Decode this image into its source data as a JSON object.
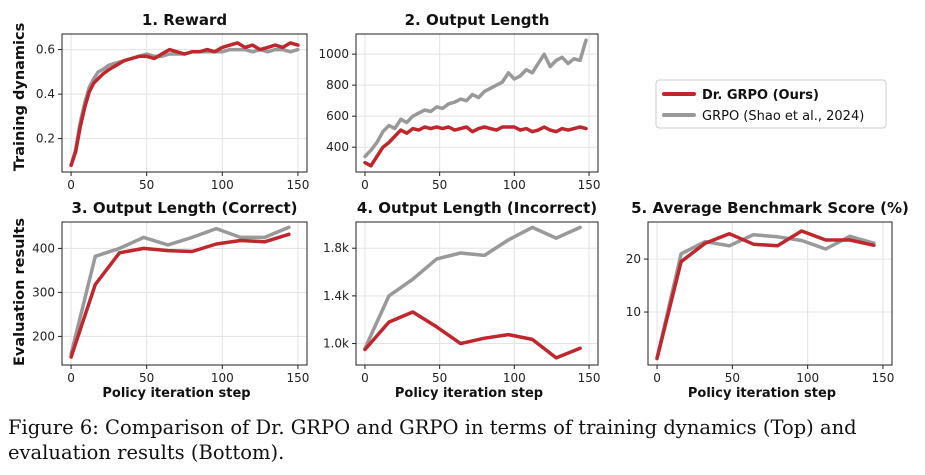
{
  "caption": "Figure 6: Comparison of Dr. GRPO and GRPO in terms of training dynamics (Top) and evaluation results (Bottom).",
  "row_labels": [
    "Training dynamics",
    "Evaluation results"
  ],
  "legend": {
    "placement": "right of top row",
    "entries": [
      {
        "label": "Dr. GRPO (Ours)",
        "color": "#c0272d",
        "bold": true
      },
      {
        "label": "GRPO (Shao et al., 2024)",
        "color": "#999999",
        "bold": false
      }
    ]
  },
  "chart_data": [
    {
      "id": "p1",
      "type": "line",
      "title": "1. Reward",
      "xlabel": "",
      "ylabel": "",
      "xlim": [
        -6,
        156
      ],
      "ylim": [
        0.05,
        0.67
      ],
      "xticks": [
        0,
        50,
        100,
        150
      ],
      "yticks": [
        0.2,
        0.4,
        0.6
      ],
      "ytick_labels": [
        "0.2",
        "0.4",
        "0.6"
      ],
      "grid": true,
      "series": [
        {
          "name": "Dr. GRPO (Ours)",
          "color": "#c0272d",
          "x": [
            0,
            3,
            6,
            9,
            12,
            15,
            18,
            21,
            25,
            30,
            35,
            40,
            45,
            50,
            55,
            60,
            65,
            70,
            75,
            80,
            85,
            90,
            95,
            100,
            105,
            110,
            115,
            120,
            125,
            130,
            135,
            140,
            145,
            150
          ],
          "y": [
            0.08,
            0.14,
            0.25,
            0.34,
            0.41,
            0.45,
            0.47,
            0.49,
            0.51,
            0.53,
            0.55,
            0.56,
            0.57,
            0.57,
            0.56,
            0.58,
            0.6,
            0.59,
            0.58,
            0.59,
            0.59,
            0.6,
            0.59,
            0.61,
            0.62,
            0.63,
            0.61,
            0.62,
            0.6,
            0.61,
            0.62,
            0.61,
            0.63,
            0.62
          ]
        },
        {
          "name": "GRPO (Shao et al., 2024)",
          "color": "#999999",
          "x": [
            0,
            3,
            6,
            9,
            12,
            15,
            18,
            21,
            25,
            30,
            35,
            40,
            45,
            50,
            55,
            60,
            65,
            70,
            75,
            80,
            85,
            90,
            95,
            100,
            105,
            110,
            115,
            120,
            125,
            130,
            135,
            140,
            145,
            150
          ],
          "y": [
            0.08,
            0.15,
            0.27,
            0.36,
            0.43,
            0.47,
            0.5,
            0.51,
            0.53,
            0.54,
            0.55,
            0.56,
            0.57,
            0.58,
            0.57,
            0.57,
            0.58,
            0.58,
            0.58,
            0.59,
            0.59,
            0.59,
            0.59,
            0.59,
            0.6,
            0.6,
            0.6,
            0.59,
            0.6,
            0.59,
            0.6,
            0.6,
            0.59,
            0.6
          ]
        }
      ]
    },
    {
      "id": "p2",
      "type": "line",
      "title": "2. Output Length",
      "xlabel": "",
      "ylabel": "",
      "xlim": [
        -6,
        156
      ],
      "ylim": [
        240,
        1130
      ],
      "xticks": [
        0,
        50,
        100,
        150
      ],
      "yticks": [
        400,
        600,
        800,
        1000
      ],
      "ytick_labels": [
        "400",
        "600",
        "800",
        "1000"
      ],
      "grid": true,
      "series": [
        {
          "name": "Dr. GRPO (Ours)",
          "color": "#c0272d",
          "x": [
            0,
            4,
            8,
            12,
            16,
            20,
            24,
            28,
            32,
            36,
            40,
            44,
            48,
            52,
            56,
            60,
            64,
            68,
            72,
            76,
            80,
            84,
            88,
            92,
            96,
            100,
            104,
            108,
            112,
            116,
            120,
            124,
            128,
            132,
            136,
            140,
            144,
            148
          ],
          "y": [
            300,
            280,
            340,
            400,
            430,
            470,
            510,
            490,
            520,
            510,
            530,
            520,
            530,
            520,
            530,
            510,
            520,
            530,
            500,
            520,
            530,
            520,
            510,
            530,
            530,
            530,
            510,
            520,
            500,
            510,
            530,
            510,
            500,
            520,
            510,
            520,
            530,
            520
          ]
        },
        {
          "name": "GRPO (Shao et al., 2024)",
          "color": "#999999",
          "x": [
            0,
            4,
            8,
            12,
            16,
            20,
            24,
            28,
            32,
            36,
            40,
            44,
            48,
            52,
            56,
            60,
            64,
            68,
            72,
            76,
            80,
            84,
            88,
            92,
            96,
            100,
            104,
            108,
            112,
            116,
            120,
            124,
            128,
            132,
            136,
            140,
            144,
            148
          ],
          "y": [
            340,
            380,
            430,
            500,
            540,
            520,
            580,
            560,
            600,
            620,
            640,
            630,
            660,
            650,
            680,
            690,
            710,
            700,
            740,
            720,
            760,
            780,
            800,
            820,
            880,
            840,
            860,
            900,
            880,
            940,
            1000,
            920,
            960,
            980,
            940,
            970,
            960,
            1090
          ]
        }
      ]
    },
    {
      "id": "p3",
      "type": "line",
      "title": "3. Output Length (Correct)",
      "xlabel": "Policy iteration step",
      "ylabel": "",
      "xlim": [
        -6,
        156
      ],
      "ylim": [
        135,
        460
      ],
      "xticks": [
        0,
        50,
        100,
        150
      ],
      "yticks": [
        200,
        300,
        400
      ],
      "ytick_labels": [
        "200",
        "300",
        "400"
      ],
      "grid": true,
      "series": [
        {
          "name": "Dr. GRPO (Ours)",
          "color": "#c0272d",
          "x": [
            0,
            16,
            32,
            48,
            64,
            80,
            96,
            112,
            128,
            144
          ],
          "y": [
            153,
            318,
            390,
            400,
            395,
            393,
            410,
            418,
            415,
            432
          ]
        },
        {
          "name": "GRPO (Shao et al., 2024)",
          "color": "#999999",
          "x": [
            0,
            16,
            32,
            48,
            64,
            80,
            96,
            112,
            128,
            144
          ],
          "y": [
            160,
            382,
            400,
            425,
            408,
            425,
            445,
            425,
            425,
            448
          ]
        }
      ]
    },
    {
      "id": "p4",
      "type": "line",
      "title": "4. Output Length (Incorrect)",
      "xlabel": "Policy iteration step",
      "ylabel": "",
      "xlim": [
        -6,
        156
      ],
      "ylim": [
        820,
        2020
      ],
      "xticks": [
        0,
        50,
        100,
        150
      ],
      "yticks": [
        1000,
        1400,
        1800
      ],
      "ytick_labels": [
        "1.0k",
        "1.4k",
        "1.8k"
      ],
      "grid": true,
      "series": [
        {
          "name": "Dr. GRPO (Ours)",
          "color": "#c0272d",
          "x": [
            0,
            16,
            32,
            48,
            64,
            80,
            96,
            112,
            128,
            144
          ],
          "y": [
            950,
            1180,
            1265,
            1140,
            1000,
            1045,
            1075,
            1035,
            880,
            960
          ]
        },
        {
          "name": "GRPO (Shao et al., 2024)",
          "color": "#999999",
          "x": [
            0,
            16,
            32,
            48,
            64,
            80,
            96,
            112,
            128,
            144
          ],
          "y": [
            960,
            1400,
            1540,
            1710,
            1760,
            1740,
            1870,
            1975,
            1885,
            1975
          ]
        }
      ]
    },
    {
      "id": "p5",
      "type": "line",
      "title": "5. Average Benchmark Score (%)",
      "xlabel": "Policy iteration step",
      "ylabel": "",
      "xlim": [
        -6,
        156
      ],
      "ylim": [
        0,
        27
      ],
      "xticks": [
        0,
        50,
        100,
        150
      ],
      "yticks": [
        10,
        20
      ],
      "ytick_labels": [
        "10",
        "20"
      ],
      "grid": true,
      "series": [
        {
          "name": "Dr. GRPO (Ours)",
          "color": "#c0272d",
          "x": [
            0,
            16,
            32,
            48,
            64,
            80,
            96,
            112,
            128,
            144
          ],
          "y": [
            1.2,
            19.5,
            23.0,
            24.8,
            22.8,
            22.5,
            25.3,
            23.6,
            23.6,
            22.6
          ]
        },
        {
          "name": "GRPO (Shao et al., 2024)",
          "color": "#999999",
          "x": [
            0,
            16,
            32,
            48,
            64,
            80,
            96,
            112,
            128,
            144
          ],
          "y": [
            1.3,
            21.0,
            23.3,
            22.5,
            24.6,
            24.2,
            23.5,
            21.9,
            24.3,
            23.0
          ]
        }
      ]
    }
  ]
}
